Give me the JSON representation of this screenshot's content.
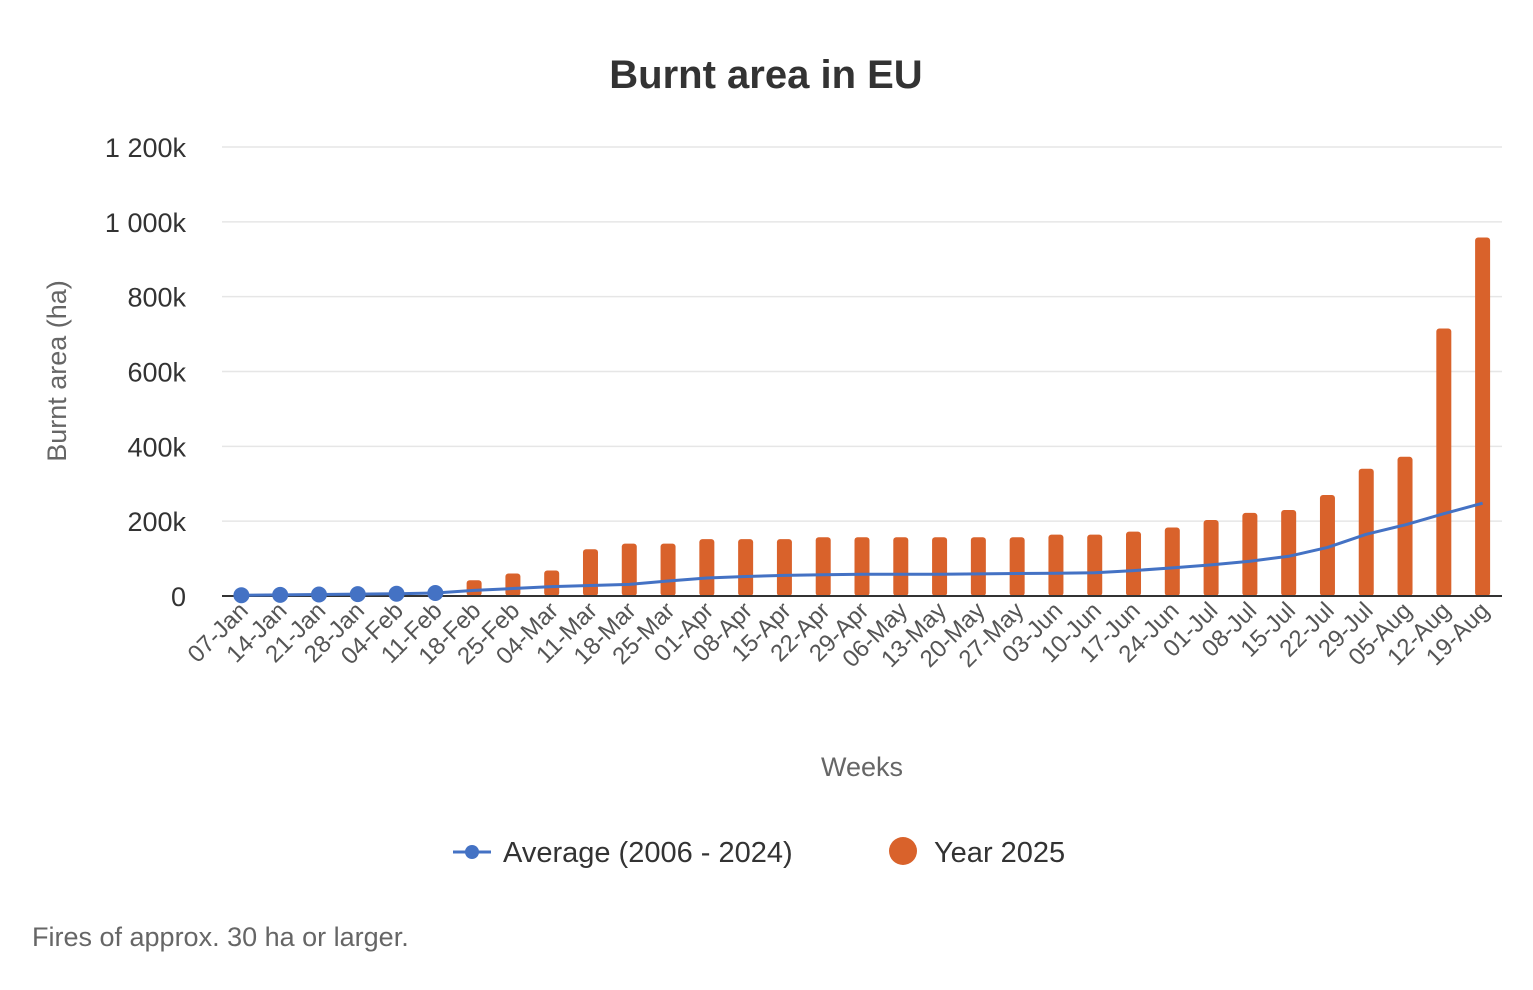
{
  "chart_data": {
    "type": "bar",
    "title": "Burnt area in EU",
    "xlabel": "Weeks",
    "ylabel": "Burnt area (ha)",
    "ylim": [
      0,
      1200000
    ],
    "yticks": [
      0,
      200000,
      400000,
      600000,
      800000,
      1000000,
      1200000
    ],
    "ytick_labels": [
      "0",
      "200k",
      "400k",
      "600k",
      "800k",
      "1 000k",
      "1 200k"
    ],
    "grid": true,
    "legend_placement": "bottom",
    "categories": [
      "07-Jan",
      "14-Jan",
      "21-Jan",
      "28-Jan",
      "04-Feb",
      "11-Feb",
      "18-Feb",
      "25-Feb",
      "04-Mar",
      "11-Mar",
      "18-Mar",
      "25-Mar",
      "01-Apr",
      "08-Apr",
      "15-Apr",
      "22-Apr",
      "29-Apr",
      "06-May",
      "13-May",
      "20-May",
      "27-May",
      "03-Jun",
      "10-Jun",
      "17-Jun",
      "24-Jun",
      "01-Jul",
      "08-Jul",
      "15-Jul",
      "22-Jul",
      "29-Jul",
      "05-Aug",
      "12-Aug",
      "19-Aug"
    ],
    "series": [
      {
        "name": "Year 2025",
        "type": "bar",
        "color": "#d9622b",
        "values": [
          0,
          1000,
          2000,
          3000,
          4000,
          5000,
          42000,
          60000,
          68000,
          125000,
          140000,
          140000,
          152000,
          152000,
          152000,
          157000,
          157000,
          157000,
          157000,
          157000,
          157000,
          164000,
          164000,
          172000,
          183000,
          203000,
          222000,
          230000,
          270000,
          340000,
          372000,
          715000,
          958000
        ]
      },
      {
        "name": "Average (2006 - 2024)",
        "type": "line",
        "color": "#4472c4",
        "values": [
          2000,
          3000,
          4000,
          5000,
          6000,
          8000,
          15000,
          20000,
          25000,
          28000,
          31000,
          40000,
          48000,
          52000,
          55000,
          57000,
          58000,
          58000,
          58000,
          59000,
          60000,
          61000,
          62000,
          68000,
          75000,
          83000,
          93000,
          106000,
          130000,
          165000,
          190000,
          220000,
          248000
        ]
      }
    ]
  },
  "footnote": "Fires of approx. 30 ha or larger."
}
